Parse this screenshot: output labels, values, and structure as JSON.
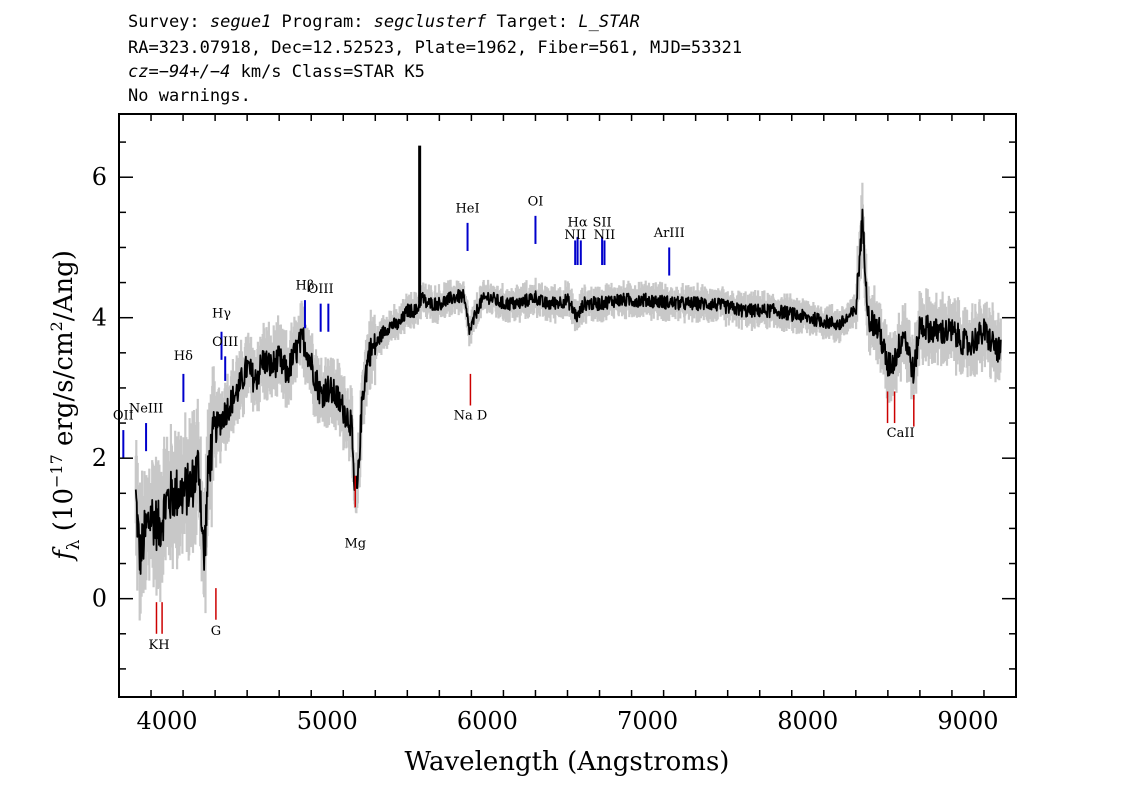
{
  "header": {
    "line1": {
      "survey_label": "Survey: ",
      "survey": "segue1",
      "program_label": " Program: ",
      "program": "segclusterf",
      "target_label": " Target: ",
      "target": "L_STAR"
    },
    "line2": "RA=323.07918, Dec=12.52523, Plate=1962, Fiber=561, MJD=53321",
    "line3": {
      "cz": "cz=−94+/−4",
      "rest": " km/s Class=STAR K5"
    },
    "line4": "No warnings."
  },
  "chart_data": {
    "type": "line",
    "xlabel": "Wavelength (Angstroms)",
    "ylabel": "f_λ (10^-17 erg/s/cm^2/Ang)",
    "ylabel_parts": {
      "f": "f",
      "sub": "λ",
      "pre": " (10",
      "exp": "−17",
      "mid": " erg/s/cm",
      "exp2": "2",
      "post": "/Ang)"
    },
    "xlim": [
      3700,
      9300
    ],
    "ylim": [
      -1.4,
      6.9
    ],
    "x_ticks": [
      4000,
      5000,
      6000,
      7000,
      8000,
      9000
    ],
    "x_tick_labels": [
      "4000",
      "5000",
      "6000",
      "7000",
      "8000",
      "9000"
    ],
    "y_ticks": [
      0,
      2,
      4,
      6
    ],
    "y_tick_labels": [
      "0",
      "2",
      "4",
      "6"
    ],
    "spectrum_color": "#000000",
    "error_color": "#c8c8c8",
    "emission_color": "#0000cc",
    "absorption_color": "#cc0000",
    "spectrum_anchors": {
      "x": [
        3800,
        3830,
        3860,
        3900,
        3950,
        4000,
        4050,
        4100,
        4150,
        4200,
        4230,
        4260,
        4300,
        4350,
        4400,
        4450,
        4500,
        4550,
        4600,
        4650,
        4700,
        4750,
        4800,
        4850,
        4880,
        4920,
        4960,
        5000,
        5050,
        5100,
        5150,
        5170,
        5190,
        5220,
        5260,
        5300,
        5350,
        5400,
        5450,
        5500,
        5560,
        5590,
        5620,
        5700,
        5800,
        5850,
        5890,
        5950,
        6000,
        6100,
        6200,
        6300,
        6350,
        6400,
        6500,
        6563,
        6600,
        6700,
        6800,
        7000,
        7200,
        7400,
        7600,
        7800,
        8000,
        8200,
        8300,
        8340,
        8380,
        8450,
        8498,
        8542,
        8600,
        8662,
        8700,
        8800,
        8900,
        9000,
        9100,
        9200
      ],
      "y": [
        1.6,
        0.6,
        0.9,
        1.2,
        1.0,
        1.4,
        1.5,
        1.5,
        1.6,
        1.9,
        0.5,
        1.9,
        2.4,
        2.6,
        2.8,
        3.0,
        3.3,
        3.1,
        3.4,
        3.3,
        3.4,
        3.2,
        3.5,
        3.7,
        3.5,
        3.2,
        2.9,
        3.0,
        2.9,
        2.7,
        2.5,
        1.5,
        1.6,
        2.9,
        3.5,
        3.6,
        3.8,
        3.9,
        3.9,
        4.1,
        4.1,
        4.3,
        4.2,
        4.2,
        4.3,
        4.3,
        3.8,
        4.2,
        4.3,
        4.2,
        4.2,
        4.3,
        4.2,
        4.2,
        4.25,
        4.0,
        4.2,
        4.2,
        4.25,
        4.25,
        4.2,
        4.2,
        4.1,
        4.1,
        4.0,
        3.9,
        4.1,
        5.4,
        4.0,
        3.8,
        3.3,
        3.4,
        3.8,
        3.2,
        3.9,
        3.8,
        3.8,
        3.6,
        3.8,
        3.5
      ]
    },
    "spikes": [
      {
        "x": 5577,
        "y": 6.45
      }
    ],
    "emission_lines": [
      {
        "name": "OII",
        "x": 3727,
        "y0": 2.0,
        "y1": 2.4,
        "label_y": 2.55
      },
      {
        "name": "NeIII",
        "x": 3869,
        "y0": 2.1,
        "y1": 2.5,
        "label_y": 2.65
      },
      {
        "name": "Hδ",
        "x": 4102,
        "y0": 2.8,
        "y1": 3.2,
        "label_y": 3.4
      },
      {
        "name": "Hγ",
        "x": 4340,
        "y0": 3.4,
        "y1": 3.8,
        "label_y": 4.0
      },
      {
        "name": "OIII",
        "x": 4363,
        "y0": 3.1,
        "y1": 3.45,
        "label_y": 3.6
      },
      {
        "name": "Hβ",
        "x": 4861,
        "y0": 3.85,
        "y1": 4.25,
        "label_y": 4.4
      },
      {
        "name": "OIII",
        "x": 4959,
        "y0": 3.8,
        "y1": 4.2,
        "label_y": 4.35
      },
      {
        "name": "",
        "x": 5007,
        "y0": 3.8,
        "y1": 4.2,
        "label_y": 0
      },
      {
        "name": "HeI",
        "x": 5876,
        "y0": 4.95,
        "y1": 5.35,
        "label_y": 5.5
      },
      {
        "name": "OI",
        "x": 6300,
        "y0": 5.05,
        "y1": 5.45,
        "label_y": 5.6
      },
      {
        "name": "NII",
        "x": 6548,
        "y0": 4.75,
        "y1": 5.1,
        "label_y": 5.12
      },
      {
        "name": "Hα",
        "x": 6563,
        "y0": 4.75,
        "y1": 5.15,
        "label_y": 5.3
      },
      {
        "name": "NII",
        "x": 6583,
        "y0": 4.75,
        "y1": 5.1,
        "label_y": 0
      },
      {
        "name": "SII",
        "x": 6716,
        "y0": 4.75,
        "y1": 5.15,
        "label_y": 5.3
      },
      {
        "name": "NII_2",
        "x": 6731,
        "y0": 4.75,
        "y1": 5.1,
        "label_y": 5.12
      },
      {
        "name": "ArIII",
        "x": 7135,
        "y0": 4.6,
        "y1": 5.0,
        "label_y": 5.15
      }
    ],
    "absorption_lines": [
      {
        "name": "K",
        "x": 3934,
        "y0": -0.5,
        "y1": -0.05
      },
      {
        "name": "H",
        "x": 3969,
        "y0": -0.5,
        "y1": -0.05
      },
      {
        "name": "G",
        "x": 4305,
        "y0": -0.3,
        "y1": 0.15
      },
      {
        "name": "Mg",
        "x": 5175,
        "y0": 1.3,
        "y1": 1.75
      },
      {
        "name": "Na D",
        "x": 5894,
        "y0": 2.75,
        "y1": 3.2
      },
      {
        "name": "CaII",
        "x": 8498,
        "y0": 2.5,
        "y1": 2.95
      },
      {
        "name": "CaII_2",
        "x": 8542,
        "y0": 2.5,
        "y1": 2.95
      },
      {
        "name": "CaII_3",
        "x": 8662,
        "y0": 2.45,
        "y1": 2.9
      }
    ],
    "absorption_labels": [
      {
        "text": "KH",
        "x": 3950,
        "y": -0.72
      },
      {
        "text": "G",
        "x": 4305,
        "y": -0.52
      },
      {
        "text": "Mg",
        "x": 5175,
        "y": 0.73
      },
      {
        "text": "Na  D",
        "x": 5894,
        "y": 2.55
      },
      {
        "text": "CaII",
        "x": 8580,
        "y": 2.3
      }
    ],
    "emission_label_texts": {
      "OII": "OII",
      "NeIII": "NeIII",
      "Hδ": "Hδ",
      "Hγ": "Hγ",
      "OIII": "OIII",
      "Hβ": "Hβ",
      "HeI": "HeI",
      "OI": "OI",
      "NII": "NII",
      "Hα": "Hα",
      "SII": "SII",
      "NII_2": "NII",
      "ArIII": "ArIII"
    }
  }
}
